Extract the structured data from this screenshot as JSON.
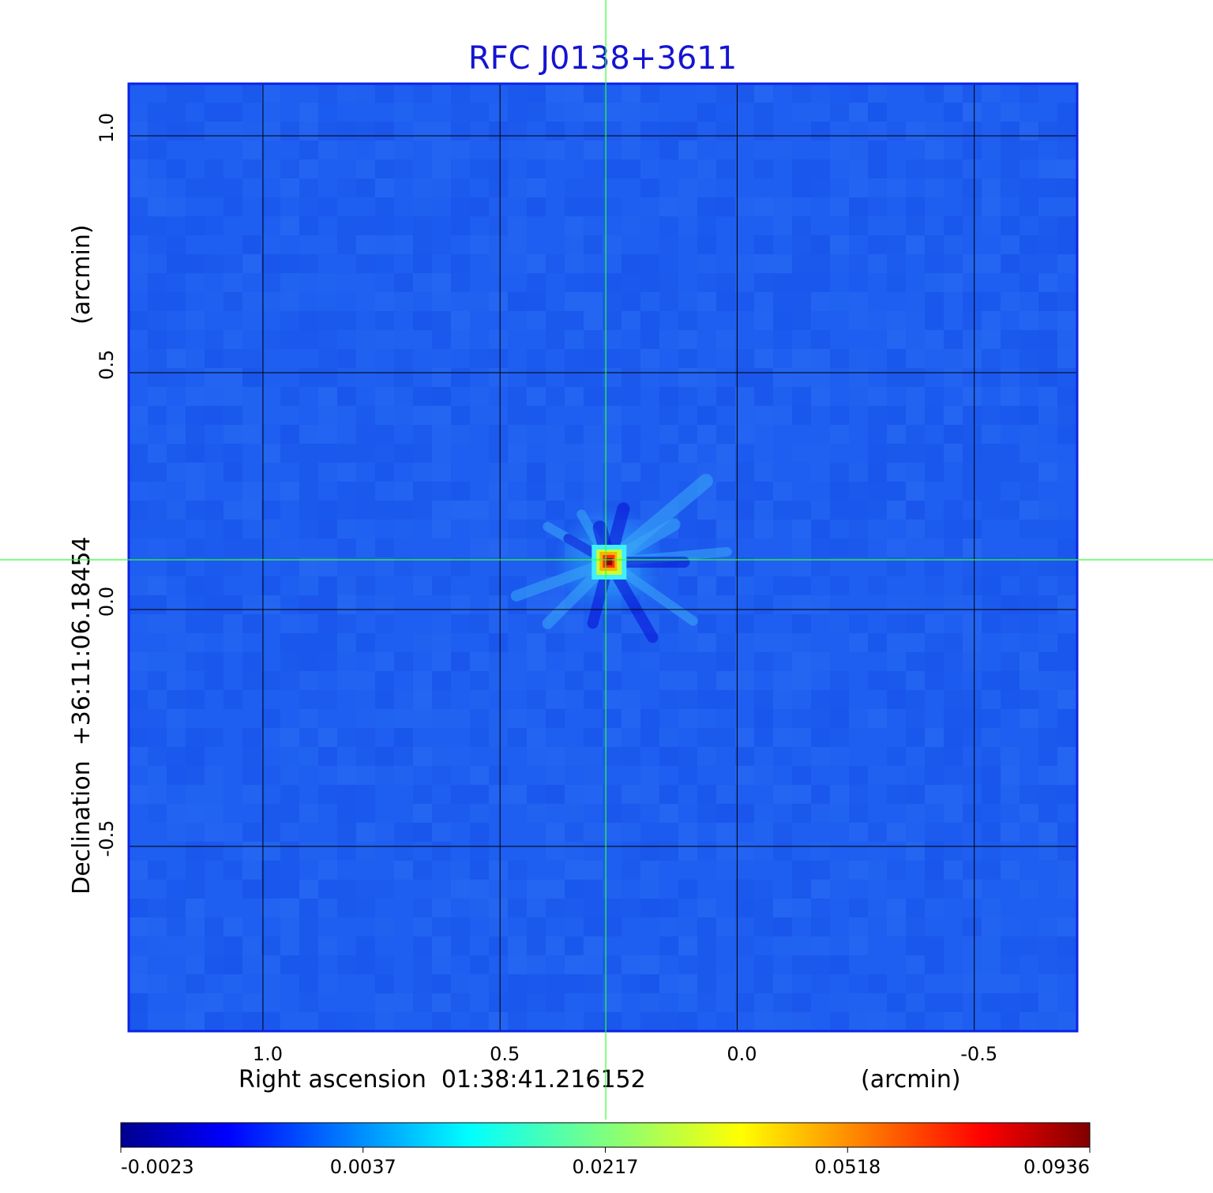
{
  "chart_data": {
    "type": "heatmap",
    "title": "RFC J0138+3611",
    "xlabel": "Right ascension  01:38:41.216152",
    "xunit": "(arcmin)",
    "ylabel": "Declination  +36:11:06.18454",
    "yunit": "(arcmin)",
    "x_ticks": [
      1.0,
      0.5,
      0.0,
      -0.5
    ],
    "x_tick_labels": [
      "1.0",
      "0.5",
      "0.0",
      "-0.5"
    ],
    "y_ticks": [
      1.0,
      0.5,
      0.0,
      -0.5
    ],
    "y_tick_labels": [
      "1.0",
      "0.5",
      "0.0",
      "-0.5"
    ],
    "xlim": [
      1.283,
      -0.717
    ],
    "ylim": [
      -0.89,
      1.11
    ],
    "x_direction": "decreasing-to-right",
    "grid": true,
    "crosshair": {
      "x": 0.277,
      "y": 0.105,
      "color": "#33ff33"
    },
    "source_peak": {
      "x": 0.27,
      "y": 0.1,
      "value": 0.0936
    },
    "colorbar": {
      "colormap": "jet",
      "placement": "bottom",
      "tick_values": [
        -0.0023,
        0.0037,
        0.0217,
        0.0518,
        0.0936
      ],
      "tick_labels": [
        "-0.0023",
        "0.0037",
        "0.0217",
        "0.0518",
        "0.0936"
      ],
      "min": -0.0023,
      "max": 0.0936
    },
    "colors": {
      "title": "#1414d2",
      "background_map": "#1e5ef0",
      "grid": "#000000",
      "crosshair": "#33ff33",
      "frame": "#0a24e6"
    }
  }
}
